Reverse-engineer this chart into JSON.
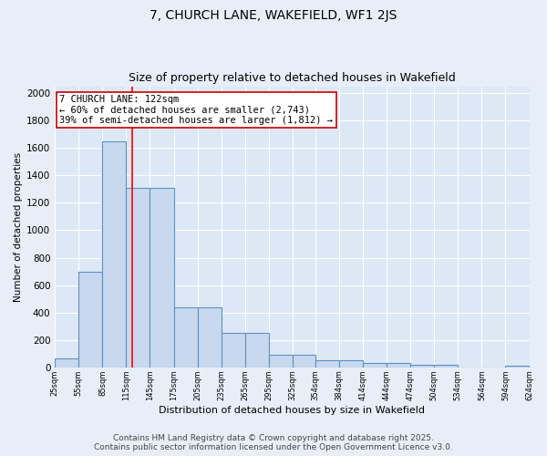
{
  "title": "7, CHURCH LANE, WAKEFIELD, WF1 2JS",
  "subtitle": "Size of property relative to detached houses in Wakefield",
  "xlabel": "Distribution of detached houses by size in Wakefield",
  "ylabel": "Number of detached properties",
  "bar_color": "#c8d8ee",
  "bar_edge_color": "#6090c0",
  "background_color": "#dce8f5",
  "grid_color": "#ffffff",
  "fig_bg_color": "#e8eef8",
  "red_line_x": 122,
  "annotation_text": "7 CHURCH LANE: 122sqm\n← 60% of detached houses are smaller (2,743)\n39% of semi-detached houses are larger (1,812) →",
  "annotation_box_color": "#ffffff",
  "annotation_box_edge": "#cc0000",
  "bin_edges": [
    25,
    55,
    85,
    115,
    145,
    175,
    205,
    235,
    265,
    295,
    325,
    354,
    384,
    414,
    444,
    474,
    504,
    534,
    564,
    594,
    624
  ],
  "bin_labels": [
    "25sqm",
    "55sqm",
    "85sqm",
    "115sqm",
    "145sqm",
    "175sqm",
    "205sqm",
    "235sqm",
    "265sqm",
    "295sqm",
    "325sqm",
    "354sqm",
    "384sqm",
    "414sqm",
    "444sqm",
    "474sqm",
    "504sqm",
    "534sqm",
    "564sqm",
    "594sqm",
    "624sqm"
  ],
  "bar_heights": [
    65,
    700,
    1650,
    1310,
    1310,
    440,
    440,
    250,
    250,
    95,
    95,
    55,
    55,
    30,
    30,
    20,
    20,
    0,
    0,
    15,
    15
  ],
  "ylim": [
    0,
    2050
  ],
  "yticks": [
    0,
    200,
    400,
    600,
    800,
    1000,
    1200,
    1400,
    1600,
    1800,
    2000
  ],
  "title_fontsize": 10,
  "subtitle_fontsize": 9,
  "annotation_fontsize": 7.5,
  "footer_fontsize": 6.5,
  "footer_line1": "Contains HM Land Registry data © Crown copyright and database right 2025.",
  "footer_line2": "Contains public sector information licensed under the Open Government Licence v3.0."
}
